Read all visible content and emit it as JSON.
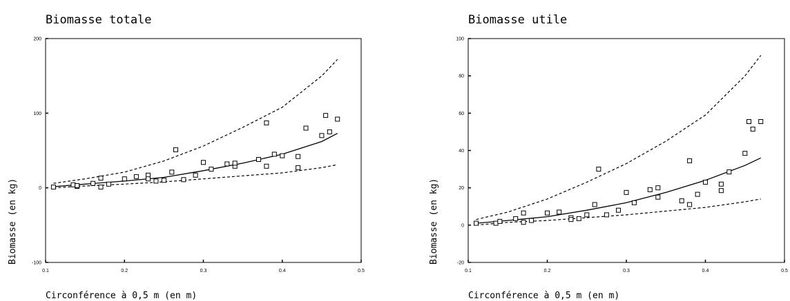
{
  "chart_data": [
    {
      "type": "scatter",
      "title": "Biomasse totale",
      "xlabel": "Circonférence à 0,5 m (en m)",
      "ylabel": "Biomasse (en kg)",
      "xlim": [
        0.1,
        0.5
      ],
      "ylim": [
        -100,
        200
      ],
      "xticks": [
        "0.1",
        "0.2",
        "0.3",
        "0.4",
        "0.5"
      ],
      "yticks": [
        "-100",
        "0",
        "100",
        "200"
      ],
      "grid": false,
      "points": {
        "x": [
          0.11,
          0.135,
          0.14,
          0.14,
          0.16,
          0.17,
          0.17,
          0.18,
          0.2,
          0.215,
          0.23,
          0.23,
          0.24,
          0.25,
          0.26,
          0.265,
          0.275,
          0.29,
          0.3,
          0.31,
          0.33,
          0.34,
          0.34,
          0.37,
          0.38,
          0.38,
          0.39,
          0.4,
          0.42,
          0.42,
          0.43,
          0.45,
          0.455,
          0.46,
          0.47
        ],
        "y": [
          1,
          4,
          2,
          3,
          6,
          1,
          13,
          5,
          12,
          15,
          17,
          12,
          9,
          10,
          21,
          51,
          11,
          17,
          34,
          25,
          32,
          29,
          33,
          38,
          87,
          29,
          45,
          43,
          27,
          42,
          80,
          70,
          97,
          75,
          92
        ]
      },
      "series": [
        {
          "name": "",
          "style": "solid",
          "x": [
            0.11,
            0.15,
            0.2,
            0.25,
            0.3,
            0.35,
            0.4,
            0.45,
            0.47
          ],
          "y": [
            1.5,
            5,
            9,
            14,
            23,
            33,
            45,
            62,
            73
          ]
        },
        {
          "name": "",
          "style": "dashed",
          "x": [
            0.11,
            0.15,
            0.2,
            0.25,
            0.3,
            0.35,
            0.4,
            0.45,
            0.47
          ],
          "y": [
            6,
            12,
            21,
            36,
            56,
            81,
            108,
            150,
            172
          ]
        },
        {
          "name": "",
          "style": "dashed",
          "x": [
            0.11,
            0.15,
            0.2,
            0.25,
            0.3,
            0.35,
            0.4,
            0.45,
            0.47
          ],
          "y": [
            0,
            2.5,
            5,
            8,
            12,
            16,
            20,
            27,
            31
          ]
        }
      ]
    },
    {
      "type": "scatter",
      "title": "Biomasse utile",
      "xlabel": "Circonférence à 0,5 m (en m)",
      "ylabel": "Biomasse (en kg)",
      "xlim": [
        0.1,
        0.5
      ],
      "ylim": [
        -20,
        100
      ],
      "xticks": [
        "0.1",
        "0.2",
        "0.3",
        "0.4",
        "0.5"
      ],
      "yticks": [
        "-20",
        "0",
        "20",
        "40",
        "60",
        "80",
        "100"
      ],
      "grid": false,
      "points": {
        "x": [
          0.11,
          0.135,
          0.14,
          0.16,
          0.17,
          0.17,
          0.18,
          0.2,
          0.215,
          0.23,
          0.23,
          0.24,
          0.25,
          0.26,
          0.265,
          0.275,
          0.29,
          0.3,
          0.31,
          0.33,
          0.34,
          0.34,
          0.37,
          0.38,
          0.38,
          0.39,
          0.4,
          0.42,
          0.42,
          0.43,
          0.45,
          0.455,
          0.46,
          0.47
        ],
        "y": [
          1,
          1,
          2,
          3.5,
          1.5,
          6.5,
          2.5,
          6.5,
          7,
          4,
          3,
          3.5,
          5.5,
          11,
          30,
          5.5,
          8,
          17.5,
          12,
          19,
          20,
          15,
          13,
          34.5,
          11,
          16.5,
          23,
          22,
          18.5,
          28.5,
          38.5,
          55.5,
          51.5,
          55.5
        ]
      },
      "series": [
        {
          "name": "",
          "style": "solid",
          "x": [
            0.11,
            0.15,
            0.2,
            0.25,
            0.3,
            0.35,
            0.4,
            0.45,
            0.47
          ],
          "y": [
            1,
            2.5,
            4.5,
            8,
            12,
            17.5,
            24,
            32,
            36
          ]
        },
        {
          "name": "",
          "style": "dashed",
          "x": [
            0.11,
            0.15,
            0.2,
            0.25,
            0.3,
            0.35,
            0.4,
            0.45,
            0.47
          ],
          "y": [
            3,
            7,
            14,
            23,
            33,
            45,
            59,
            80,
            91
          ]
        },
        {
          "name": "",
          "style": "dashed",
          "x": [
            0.11,
            0.15,
            0.2,
            0.25,
            0.3,
            0.35,
            0.4,
            0.45,
            0.47
          ],
          "y": [
            0,
            1.5,
            2.5,
            4,
            5.5,
            7.5,
            9.5,
            12.5,
            14
          ]
        }
      ]
    }
  ]
}
